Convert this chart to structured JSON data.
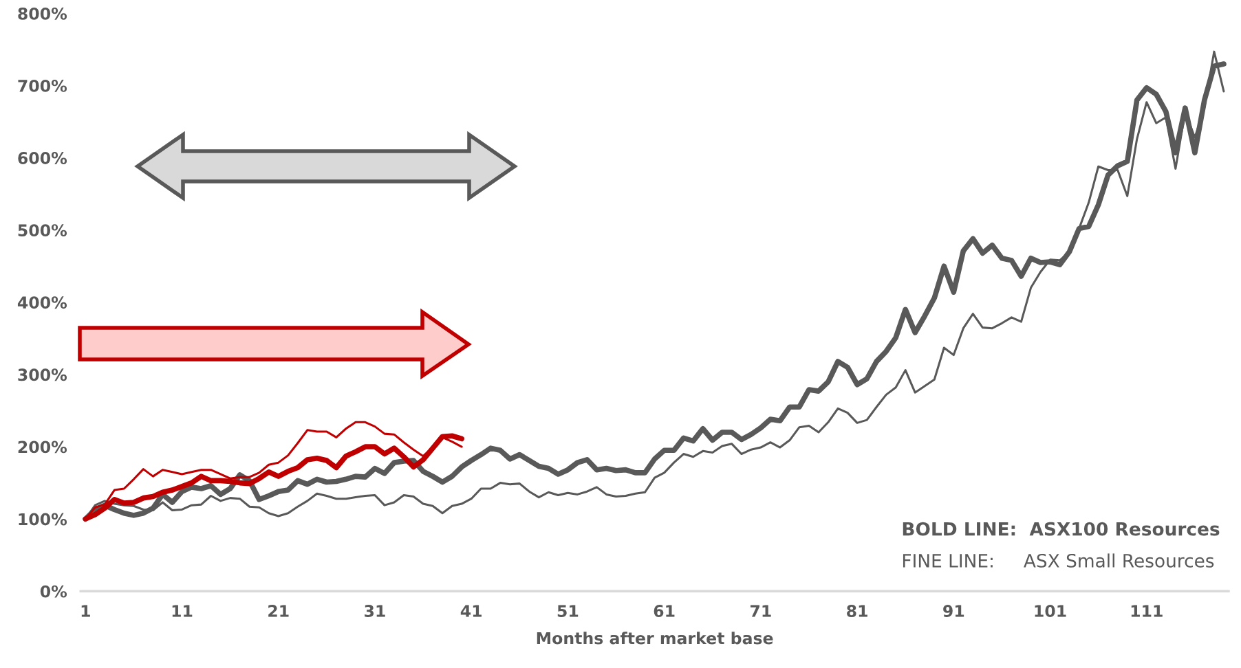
{
  "chart_data": {
    "type": "line",
    "xlabel": "Months after market base",
    "xlim": [
      0.5,
      119.5
    ],
    "xticks": [
      1,
      11,
      21,
      31,
      41,
      51,
      61,
      71,
      81,
      91,
      101,
      111
    ],
    "ylim": [
      0,
      800
    ],
    "yticks": [
      {
        "value": 0,
        "label": "0%"
      },
      {
        "value": 100,
        "label": "100%"
      },
      {
        "value": 200,
        "label": "200%"
      },
      {
        "value": 300,
        "label": "300%"
      },
      {
        "value": 400,
        "label": "400%"
      },
      {
        "value": 500,
        "label": "500%"
      },
      {
        "value": 600,
        "label": "600%"
      },
      {
        "value": 700,
        "label": "700%"
      },
      {
        "value": 800,
        "label": "800%"
      }
    ],
    "grid": false,
    "legend": false,
    "marker": "none",
    "line_style": "solid",
    "series": [
      {
        "color": "#595959",
        "x": [
          1,
          2,
          3,
          4,
          5,
          6,
          7,
          8,
          9,
          10,
          11,
          12,
          13,
          14,
          15,
          16,
          17,
          18,
          19,
          20,
          21,
          22,
          23,
          24,
          25,
          26,
          27,
          28,
          29,
          30,
          31,
          32,
          33,
          34,
          35,
          36,
          37,
          38,
          39,
          40,
          41,
          42,
          43,
          44,
          45,
          46,
          47,
          48,
          49,
          50,
          51,
          52,
          53,
          54,
          55,
          56,
          57,
          58,
          59,
          60,
          61,
          62,
          63,
          64,
          65,
          66,
          67,
          68,
          69,
          70,
          71,
          72,
          73,
          74,
          75,
          76,
          77,
          78,
          79,
          80,
          81,
          82,
          83,
          84,
          85,
          86,
          87,
          88,
          89,
          90,
          91,
          92,
          93,
          94,
          95,
          96,
          97,
          98,
          99,
          100,
          101,
          102,
          103,
          104,
          105,
          106,
          107,
          108,
          109,
          110,
          111,
          112,
          113,
          114,
          115,
          116,
          117,
          118,
          119
        ],
        "values": [
          100,
          113,
          119,
          113,
          108,
          105,
          108,
          115,
          134,
          123,
          138,
          144,
          142,
          146,
          134,
          142,
          161,
          153,
          127,
          132,
          138,
          140,
          153,
          148,
          155,
          151,
          152,
          155,
          159,
          158,
          170,
          163,
          178,
          180,
          181,
          166,
          159,
          151,
          159,
          172,
          181,
          189,
          198,
          195,
          183,
          189,
          181,
          173,
          170,
          162,
          168,
          178,
          182,
          168,
          170,
          167,
          168,
          164,
          164,
          183,
          195,
          195,
          212,
          208,
          225,
          209,
          220,
          220,
          210,
          217,
          226,
          238,
          236,
          255,
          255,
          279,
          277,
          290,
          318,
          310,
          286,
          294,
          318,
          332,
          351,
          390,
          358,
          381,
          406,
          450,
          414,
          471,
          488,
          468,
          479,
          461,
          458,
          436,
          461,
          455,
          456,
          452,
          470,
          502,
          505,
          535,
          576,
          589,
          595,
          680,
          697,
          688,
          664,
          607,
          669,
          607,
          680,
          727,
          730
        ]
      },
      {
        "color": "#595959",
        "x": [
          1,
          2,
          3,
          4,
          5,
          6,
          7,
          8,
          9,
          10,
          11,
          12,
          13,
          14,
          15,
          16,
          17,
          18,
          19,
          20,
          21,
          22,
          23,
          24,
          25,
          26,
          27,
          28,
          29,
          30,
          31,
          32,
          33,
          34,
          35,
          36,
          37,
          38,
          39,
          40,
          41,
          42,
          43,
          44,
          45,
          46,
          47,
          48,
          49,
          50,
          51,
          52,
          53,
          54,
          55,
          56,
          57,
          58,
          59,
          60,
          61,
          62,
          63,
          64,
          65,
          66,
          67,
          68,
          69,
          70,
          71,
          72,
          73,
          74,
          75,
          76,
          77,
          78,
          79,
          80,
          81,
          82,
          83,
          84,
          85,
          86,
          87,
          88,
          89,
          90,
          91,
          92,
          93,
          94,
          95,
          96,
          97,
          98,
          99,
          100,
          101,
          102,
          103,
          104,
          105,
          106,
          107,
          108,
          109,
          110,
          111,
          112,
          113,
          114,
          115,
          116,
          117,
          118,
          119
        ],
        "values": [
          100,
          119,
          125,
          121,
          119,
          118,
          113,
          112,
          123,
          112,
          113,
          119,
          120,
          132,
          125,
          129,
          128,
          117,
          116,
          108,
          104,
          108,
          117,
          125,
          135,
          132,
          128,
          128,
          130,
          132,
          133,
          119,
          123,
          133,
          131,
          121,
          118,
          108,
          118,
          121,
          128,
          142,
          142,
          150,
          148,
          149,
          138,
          130,
          137,
          133,
          136,
          134,
          138,
          144,
          134,
          131,
          132,
          135,
          137,
          157,
          164,
          178,
          190,
          186,
          194,
          192,
          201,
          204,
          190,
          196,
          199,
          206,
          199,
          209,
          227,
          229,
          220,
          234,
          253,
          247,
          233,
          237,
          255,
          272,
          282,
          306,
          275,
          284,
          293,
          337,
          327,
          364,
          384,
          365,
          364,
          371,
          379,
          373,
          420,
          442,
          459,
          458,
          470,
          502,
          538,
          588,
          583,
          583,
          547,
          626,
          677,
          648,
          656,
          585,
          664,
          628,
          670,
          747,
          692
        ]
      },
      {
        "color": "#c00000",
        "x": [
          1,
          2,
          3,
          4,
          5,
          6,
          7,
          8,
          9,
          10,
          11,
          12,
          13,
          14,
          15,
          16,
          17,
          18,
          19,
          20,
          21,
          22,
          23,
          24,
          25,
          26,
          27,
          28,
          29,
          30,
          31,
          32,
          33,
          34,
          35,
          36,
          37,
          38,
          39,
          40
        ],
        "values": [
          100,
          106,
          115,
          127,
          122,
          123,
          129,
          131,
          137,
          140,
          145,
          150,
          159,
          153,
          153,
          152,
          150,
          149,
          156,
          165,
          159,
          166,
          171,
          182,
          184,
          181,
          171,
          187,
          193,
          200,
          200,
          190,
          198,
          186,
          172,
          182,
          198,
          214,
          215,
          211
        ]
      },
      {
        "color": "#c00000",
        "x": [
          1,
          2,
          3,
          4,
          5,
          6,
          7,
          8,
          9,
          10,
          11,
          12,
          13,
          14,
          15,
          16,
          17,
          18,
          19,
          20,
          21,
          22,
          23,
          24,
          25,
          26,
          27,
          28,
          29,
          30,
          31,
          32,
          33,
          34,
          35,
          36,
          37,
          38,
          39,
          40
        ],
        "values": [
          100,
          116,
          120,
          140,
          142,
          155,
          169,
          159,
          168,
          165,
          162,
          165,
          168,
          168,
          162,
          156,
          158,
          158,
          164,
          175,
          178,
          188,
          205,
          223,
          221,
          221,
          213,
          225,
          234,
          234,
          228,
          218,
          217,
          206,
          196,
          187,
          199,
          213,
          207,
          200
        ]
      }
    ],
    "annotations": [
      "BOLD LINE:  ASX100 Resources",
      "FINE LINE:     ASX Small Resources"
    ]
  }
}
